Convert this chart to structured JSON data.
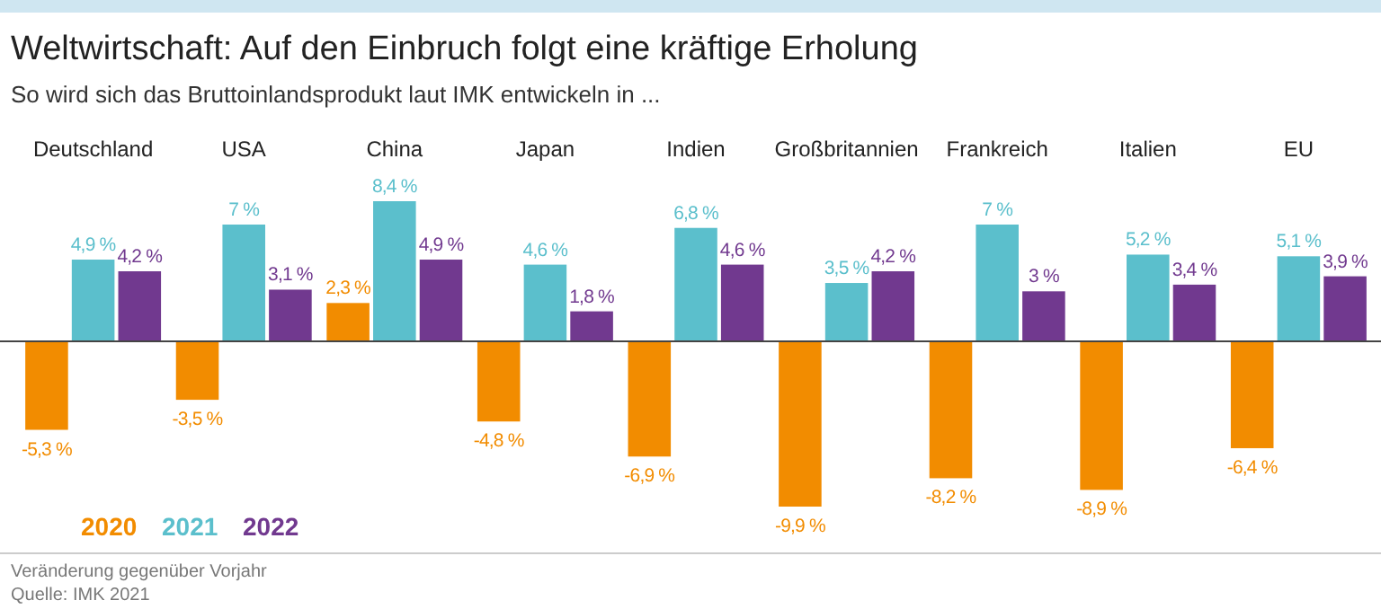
{
  "chart_data": {
    "type": "bar",
    "title": "Weltwirtschaft: Auf den Einbruch folgt eine kräftige Erholung",
    "subtitle": "So wird sich das Bruttoinlandsprodukt laut IMK entwickeln in ...",
    "categories": [
      "Deutschland",
      "USA",
      "China",
      "Japan",
      "Indien",
      "Großbritannien",
      "Frankreich",
      "Italien",
      "EU"
    ],
    "series": [
      {
        "name": "2020",
        "color": "#f28c00",
        "values": [
          -5.3,
          -3.5,
          2.3,
          -4.8,
          -6.9,
          -9.9,
          -8.2,
          -8.9,
          -6.4
        ],
        "value_labels": [
          "-5,3 %",
          "-3,5 %",
          "2,3 %",
          "-4,8 %",
          "-6,9 %",
          "-9,9 %",
          "-8,2 %",
          "-8,9 %",
          "-6,4 %"
        ]
      },
      {
        "name": "2021",
        "color": "#5bbfcc",
        "values": [
          4.9,
          7,
          8.4,
          4.6,
          6.8,
          3.5,
          7,
          5.2,
          5.1
        ],
        "value_labels": [
          "4,9 %",
          "7 %",
          "8,4 %",
          "4,6 %",
          "6,8 %",
          "3,5 %",
          "7 %",
          "5,2 %",
          "5,1 %"
        ]
      },
      {
        "name": "2022",
        "color": "#71398f",
        "values": [
          4.2,
          3.1,
          4.9,
          1.8,
          4.6,
          4.2,
          3,
          3.4,
          3.9
        ],
        "value_labels": [
          "4,2 %",
          "3,1 %",
          "4,9 %",
          "1,8 %",
          "4,6 %",
          "4,2 %",
          "3 %",
          "3,4 %",
          "3,9 %"
        ]
      }
    ],
    "legend": "bottom left",
    "annotations": [
      "Veränderung gegenüber Vorjahr",
      "Quelle: IMK 2021"
    ]
  }
}
